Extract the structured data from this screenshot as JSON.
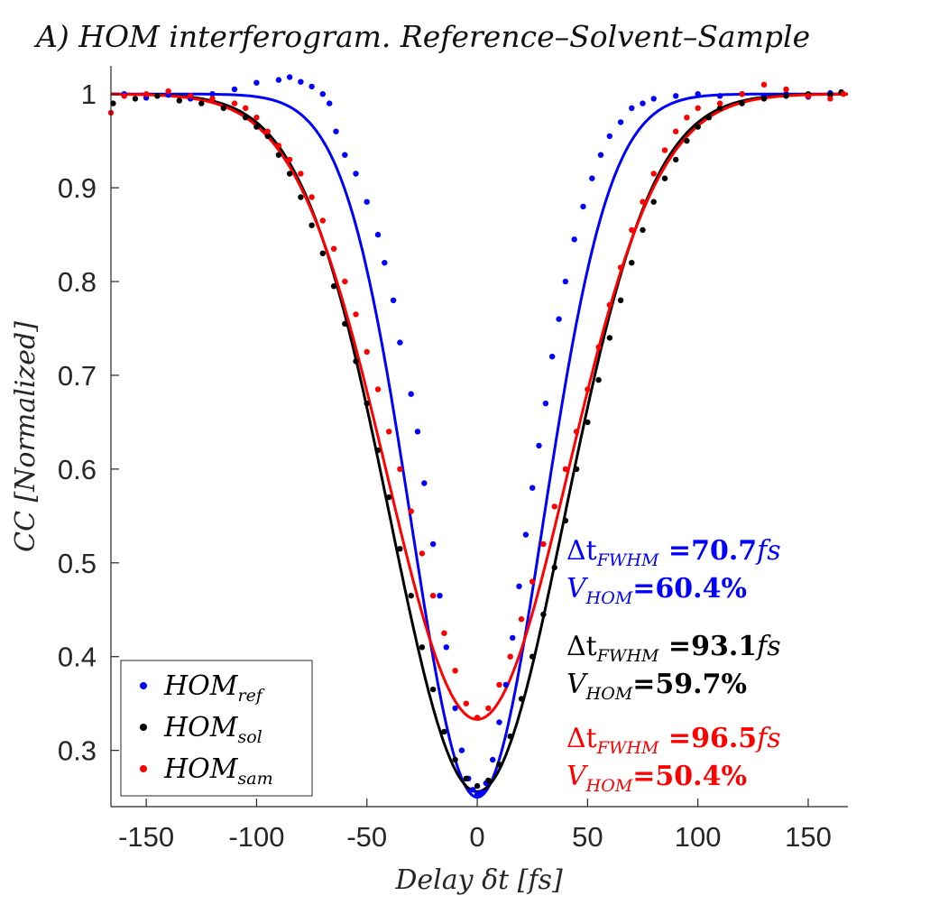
{
  "chart_data": {
    "type": "scatter",
    "title": "A) HOM interferogram. Reference–Solvent–Sample",
    "xlabel": "Delay δt [fs]",
    "ylabel": "CC [Normalized]",
    "xlim": [
      -166,
      168
    ],
    "ylim": [
      0.24,
      1.03
    ],
    "xticks": [
      -150,
      -100,
      -50,
      0,
      50,
      100,
      150
    ],
    "xtick_labels": [
      "-150",
      "-100",
      "-50",
      "0",
      "50",
      "100",
      "150"
    ],
    "yticks": [
      0.3,
      0.4,
      0.5,
      0.6,
      0.7,
      0.8,
      0.9,
      1.0
    ],
    "ytick_labels": [
      "0.3",
      "0.4",
      "0.5",
      "0.6",
      "0.7",
      "0.8",
      "0.9",
      "1"
    ],
    "legend_position": "bottom-left",
    "series": [
      {
        "name": "HOM_ref",
        "legend_main": "HOM",
        "legend_sub": "ref",
        "color": "#0000ff",
        "fit_min": 0.25,
        "fwhm_fs": 70.7,
        "visibility_pct": 60.4,
        "points": [
          [
            -160,
            1.0
          ],
          [
            -150,
            0.996
          ],
          [
            -140,
            0.999
          ],
          [
            -130,
            0.995
          ],
          [
            -120,
            1.0
          ],
          [
            -110,
            1.005
          ],
          [
            -100,
            1.012
          ],
          [
            -90,
            1.015
          ],
          [
            -85,
            1.018
          ],
          [
            -80,
            1.013
          ],
          [
            -75,
            1.008
          ],
          [
            -70,
            1.0
          ],
          [
            -67,
            0.99
          ],
          [
            -64,
            0.96
          ],
          [
            -60,
            0.935
          ],
          [
            -55,
            0.915
          ],
          [
            -50,
            0.885
          ],
          [
            -45,
            0.85
          ],
          [
            -42,
            0.82
          ],
          [
            -38,
            0.78
          ],
          [
            -35,
            0.735
          ],
          [
            -30,
            0.68
          ],
          [
            -27,
            0.64
          ],
          [
            -24,
            0.585
          ],
          [
            -20,
            0.52
          ],
          [
            -17,
            0.465
          ],
          [
            -14,
            0.41
          ],
          [
            -10,
            0.345
          ],
          [
            -7,
            0.3
          ],
          [
            -4,
            0.27
          ],
          [
            -2,
            0.258
          ],
          [
            0,
            0.253
          ],
          [
            2,
            0.255
          ],
          [
            4,
            0.265
          ],
          [
            7,
            0.29
          ],
          [
            10,
            0.33
          ],
          [
            13,
            0.37
          ],
          [
            16,
            0.42
          ],
          [
            19,
            0.475
          ],
          [
            22,
            0.53
          ],
          [
            25,
            0.58
          ],
          [
            28,
            0.625
          ],
          [
            31,
            0.67
          ],
          [
            34,
            0.72
          ],
          [
            37,
            0.76
          ],
          [
            40,
            0.8
          ],
          [
            44,
            0.845
          ],
          [
            48,
            0.88
          ],
          [
            52,
            0.91
          ],
          [
            56,
            0.935
          ],
          [
            60,
            0.955
          ],
          [
            65,
            0.97
          ],
          [
            70,
            0.985
          ],
          [
            75,
            0.99
          ],
          [
            80,
            0.995
          ],
          [
            90,
            0.998
          ],
          [
            100,
            1.0
          ],
          [
            110,
            0.998
          ],
          [
            120,
            1.0
          ],
          [
            130,
            0.998
          ],
          [
            140,
            1.0
          ],
          [
            150,
            0.997
          ],
          [
            160,
            1.001
          ]
        ]
      },
      {
        "name": "HOM_sol",
        "legend_main": "HOM",
        "legend_sub": "sol",
        "color": "#000000",
        "fit_min": 0.256,
        "fwhm_fs": 93.1,
        "visibility_pct": 59.7,
        "points": [
          [
            -165,
            0.99
          ],
          [
            -155,
            0.995
          ],
          [
            -145,
            0.998
          ],
          [
            -135,
            0.993
          ],
          [
            -125,
            0.99
          ],
          [
            -115,
            0.985
          ],
          [
            -105,
            0.975
          ],
          [
            -100,
            0.965
          ],
          [
            -95,
            0.955
          ],
          [
            -90,
            0.935
          ],
          [
            -85,
            0.915
          ],
          [
            -80,
            0.89
          ],
          [
            -75,
            0.86
          ],
          [
            -70,
            0.83
          ],
          [
            -65,
            0.795
          ],
          [
            -60,
            0.755
          ],
          [
            -55,
            0.715
          ],
          [
            -50,
            0.67
          ],
          [
            -45,
            0.62
          ],
          [
            -40,
            0.57
          ],
          [
            -35,
            0.515
          ],
          [
            -30,
            0.465
          ],
          [
            -25,
            0.41
          ],
          [
            -20,
            0.365
          ],
          [
            -15,
            0.32
          ],
          [
            -10,
            0.29
          ],
          [
            -5,
            0.27
          ],
          [
            0,
            0.262
          ],
          [
            5,
            0.268
          ],
          [
            10,
            0.285
          ],
          [
            15,
            0.315
          ],
          [
            20,
            0.355
          ],
          [
            25,
            0.4
          ],
          [
            30,
            0.445
          ],
          [
            35,
            0.495
          ],
          [
            40,
            0.545
          ],
          [
            45,
            0.6
          ],
          [
            50,
            0.65
          ],
          [
            55,
            0.695
          ],
          [
            60,
            0.74
          ],
          [
            65,
            0.78
          ],
          [
            70,
            0.82
          ],
          [
            75,
            0.855
          ],
          [
            80,
            0.885
          ],
          [
            85,
            0.91
          ],
          [
            90,
            0.93
          ],
          [
            95,
            0.95
          ],
          [
            100,
            0.965
          ],
          [
            105,
            0.975
          ],
          [
            110,
            0.985
          ],
          [
            120,
            0.99
          ],
          [
            130,
            0.995
          ],
          [
            140,
            0.998
          ],
          [
            150,
            1.0
          ],
          [
            160,
            0.999
          ],
          [
            165,
            1.002
          ]
        ]
      },
      {
        "name": "HOM_sam",
        "legend_main": "HOM",
        "legend_sub": "sam",
        "color": "#ff0000",
        "fit_min": 0.333,
        "fwhm_fs": 96.5,
        "visibility_pct": 50.4,
        "points": [
          [
            -166,
            0.98
          ],
          [
            -160,
            0.998
          ],
          [
            -150,
            1.0
          ],
          [
            -140,
            1.003
          ],
          [
            -130,
            0.998
          ],
          [
            -120,
            0.995
          ],
          [
            -110,
            0.99
          ],
          [
            -105,
            0.985
          ],
          [
            -100,
            0.975
          ],
          [
            -95,
            0.96
          ],
          [
            -90,
            0.945
          ],
          [
            -85,
            0.93
          ],
          [
            -80,
            0.915
          ],
          [
            -75,
            0.89
          ],
          [
            -70,
            0.865
          ],
          [
            -65,
            0.835
          ],
          [
            -60,
            0.8
          ],
          [
            -55,
            0.765
          ],
          [
            -50,
            0.725
          ],
          [
            -45,
            0.685
          ],
          [
            -40,
            0.64
          ],
          [
            -35,
            0.6
          ],
          [
            -30,
            0.555
          ],
          [
            -25,
            0.51
          ],
          [
            -20,
            0.465
          ],
          [
            -15,
            0.425
          ],
          [
            -10,
            0.385
          ],
          [
            -5,
            0.35
          ],
          [
            0,
            0.335
          ],
          [
            5,
            0.345
          ],
          [
            10,
            0.37
          ],
          [
            15,
            0.4
          ],
          [
            20,
            0.44
          ],
          [
            25,
            0.48
          ],
          [
            30,
            0.52
          ],
          [
            35,
            0.56
          ],
          [
            40,
            0.6
          ],
          [
            45,
            0.64
          ],
          [
            50,
            0.685
          ],
          [
            55,
            0.73
          ],
          [
            60,
            0.775
          ],
          [
            65,
            0.815
          ],
          [
            70,
            0.855
          ],
          [
            75,
            0.885
          ],
          [
            80,
            0.915
          ],
          [
            85,
            0.94
          ],
          [
            90,
            0.96
          ],
          [
            95,
            0.975
          ],
          [
            100,
            0.985
          ],
          [
            110,
            0.99
          ],
          [
            120,
            1.0
          ],
          [
            130,
            1.01
          ],
          [
            140,
            1.005
          ],
          [
            150,
            0.998
          ],
          [
            160,
            0.995
          ],
          [
            166,
            1.0
          ]
        ]
      }
    ],
    "annotations": [
      {
        "series": "HOM_ref",
        "color": "#0000ff",
        "dt_main": "Δt",
        "dt_sub": "FWHM",
        "dt_value": " =70.7",
        "dt_unit": "fs",
        "v_main": "V",
        "v_sub": "HOM",
        "v_value": "=60.4%"
      },
      {
        "series": "HOM_sol",
        "color": "#000000",
        "dt_main": "Δt",
        "dt_sub": "FWHM",
        "dt_value": " =93.1",
        "dt_unit": "fs",
        "v_main": "V",
        "v_sub": "HOM",
        "v_value": "=59.7%"
      },
      {
        "series": "HOM_sam",
        "color": "#ff0000",
        "dt_main": "Δt",
        "dt_sub": "FWHM",
        "dt_value": " =96.5",
        "dt_unit": "fs",
        "v_main": "V",
        "v_sub": "HOM",
        "v_value": "=50.4%"
      }
    ]
  }
}
